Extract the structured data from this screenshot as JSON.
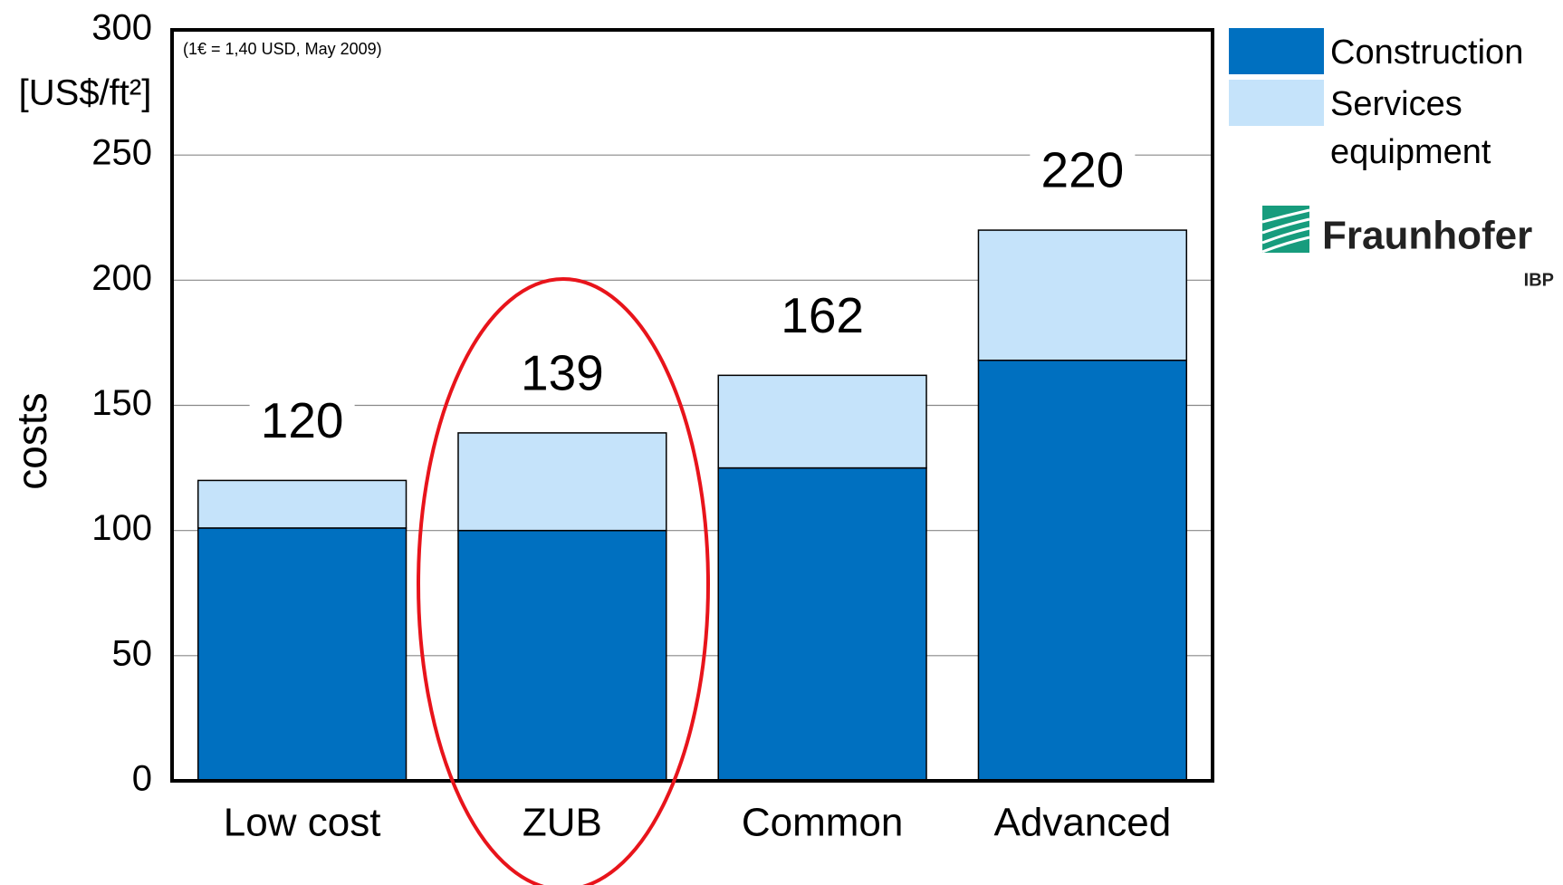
{
  "chart_data": {
    "type": "stacked_bar",
    "y_label": "costs",
    "y_unit": "[US$/ft²]",
    "note": "(1€ = 1,40 USD, May 2009)",
    "categories": [
      "Low cost",
      "ZUB",
      "Common",
      "Advanced"
    ],
    "series": [
      {
        "name": "Construction",
        "color": "#0070c0",
        "values": [
          101,
          100,
          125,
          168
        ]
      },
      {
        "name": "Services equipment",
        "color": "#c5e3fa",
        "values": [
          19,
          39,
          37,
          52
        ]
      }
    ],
    "totals": [
      120,
      139,
      162,
      220
    ],
    "ylim": [
      0,
      300
    ],
    "yticks": [
      0,
      50,
      100,
      150,
      200,
      250,
      300
    ],
    "grid": true,
    "logo": {
      "name": "Fraunhofer",
      "sub": "IBP"
    }
  }
}
